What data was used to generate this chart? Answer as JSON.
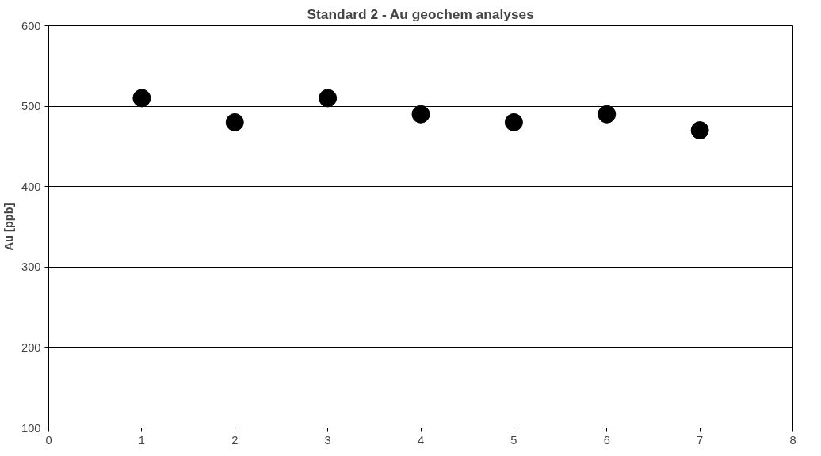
{
  "chart_data": {
    "type": "scatter",
    "title": "Standard 2 - Au geochem analyses",
    "ylabel": "Au [ppb]",
    "x": [
      1,
      2,
      3,
      4,
      5,
      6,
      7
    ],
    "series": [
      {
        "color": "#000000",
        "values": [
          510,
          480,
          510,
          490,
          480,
          490,
          470
        ]
      }
    ],
    "xlim": [
      0,
      8
    ],
    "xticks": [
      0,
      1,
      2,
      3,
      4,
      5,
      6,
      7,
      8
    ],
    "ylim": [
      100,
      600
    ],
    "yticks": [
      100,
      200,
      300,
      400,
      500,
      600
    ],
    "grid": "y",
    "marker": "circle"
  }
}
